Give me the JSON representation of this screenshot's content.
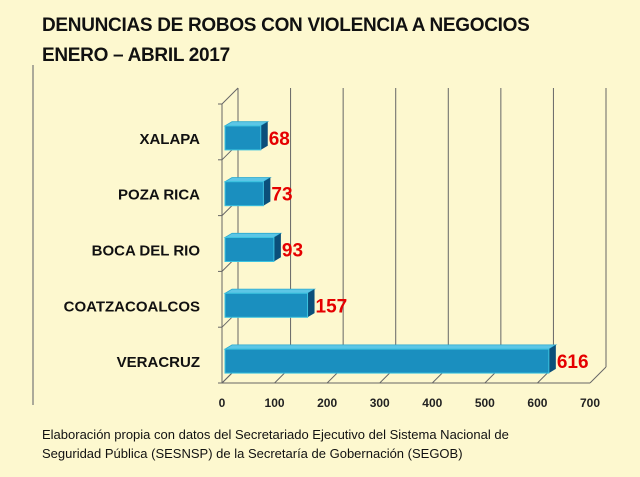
{
  "chart_data": {
    "type": "bar",
    "orientation": "horizontal",
    "title": "DENUNCIAS DE ROBOS CON VIOLENCIA A NEGOCIOS",
    "subtitle": "ENERO – ABRIL 2017",
    "categories": [
      "XALAPA",
      "POZA RICA",
      "BOCA DEL RIO",
      "COATZACOALCOS",
      "VERACRUZ"
    ],
    "values": [
      68,
      73,
      93,
      157,
      616
    ],
    "xlim": [
      0,
      700
    ],
    "xticks": [
      "0",
      "100",
      "200",
      "300",
      "400",
      "500",
      "600",
      "700"
    ],
    "xlabel": "",
    "ylabel": "",
    "grid": true,
    "bar_color": "#1a8fbf",
    "label_color": "#e50000"
  },
  "footnote": {
    "line1": "Elaboración propia con datos del Secretariado Ejecutivo del Sistema Nacional de",
    "line2": "Seguridad Pública (SESNSP) de la Secretaría de Gobernación (SEGOB)"
  }
}
